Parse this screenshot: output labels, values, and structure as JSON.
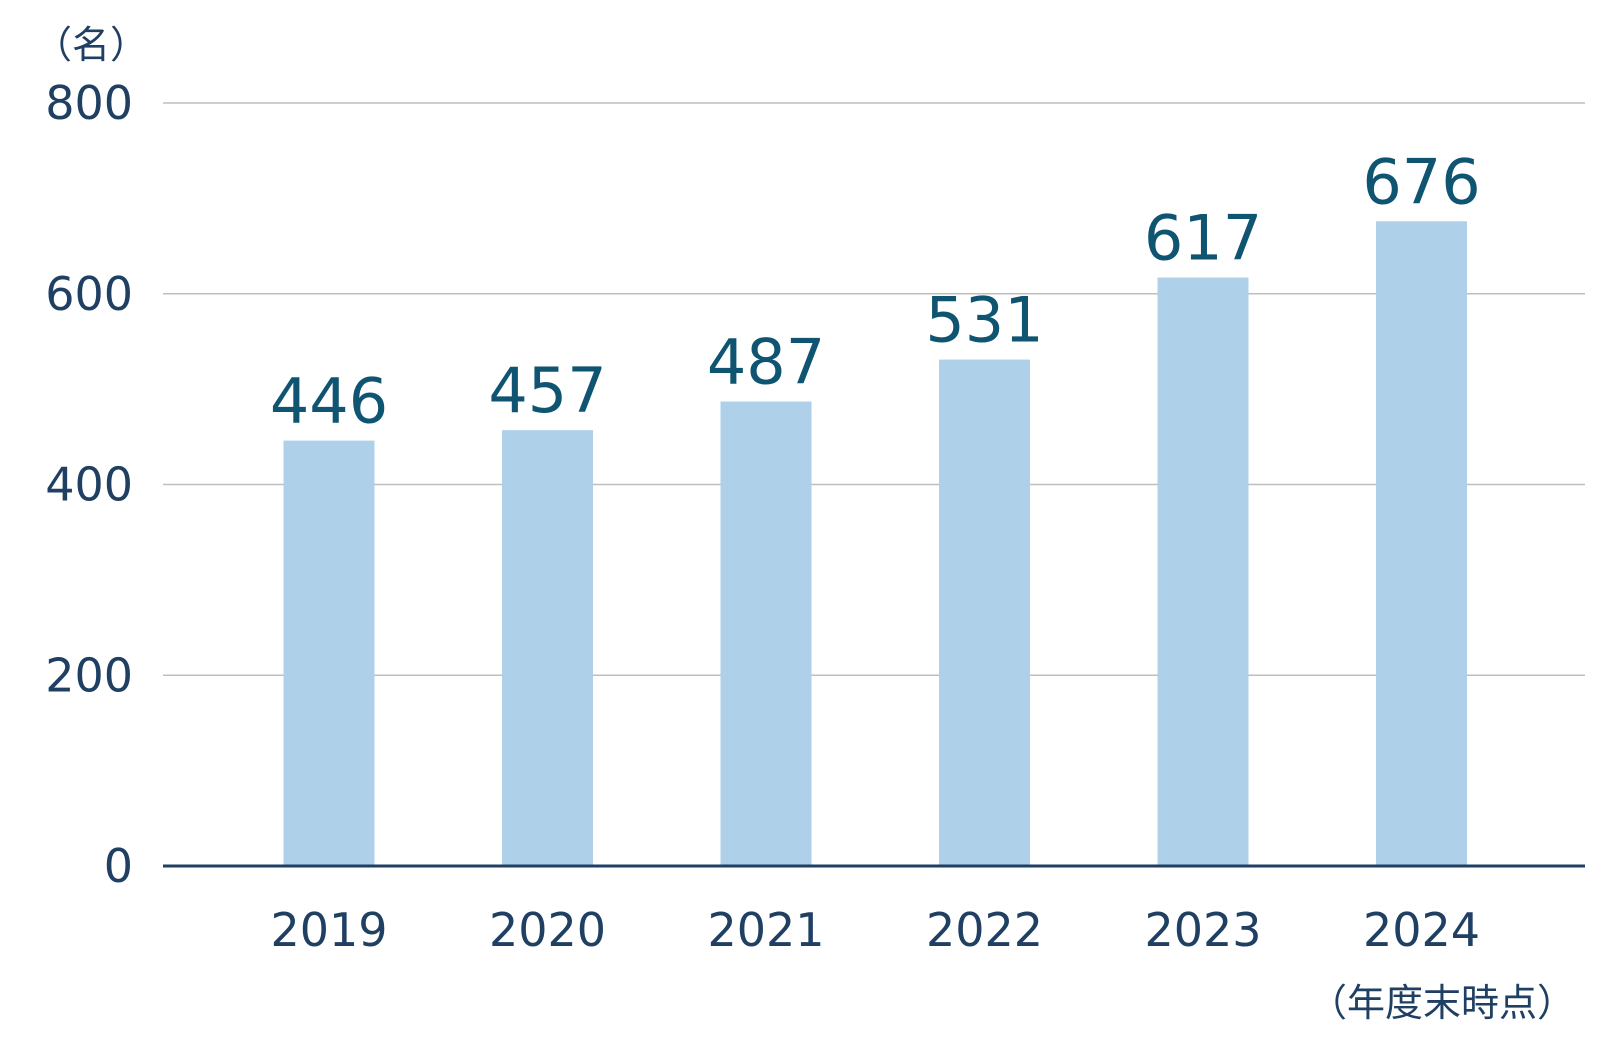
{
  "chart_data": {
    "type": "bar",
    "categories": [
      "2019",
      "2020",
      "2021",
      "2022",
      "2023",
      "2024"
    ],
    "values": [
      446,
      457,
      487,
      531,
      617,
      676
    ],
    "ylabel": "（名）",
    "xnote": "（年度末時点）",
    "ylim": [
      0,
      800
    ],
    "yticks": [
      0,
      200,
      400,
      600,
      800
    ],
    "grid": true,
    "legend": "none",
    "colors": {
      "bar": "#aed0e8",
      "grid": "#bfbfbf",
      "axis": "#1f3f63",
      "tick_text": "#1f3f63",
      "data_label_text": "#0f5572"
    }
  }
}
